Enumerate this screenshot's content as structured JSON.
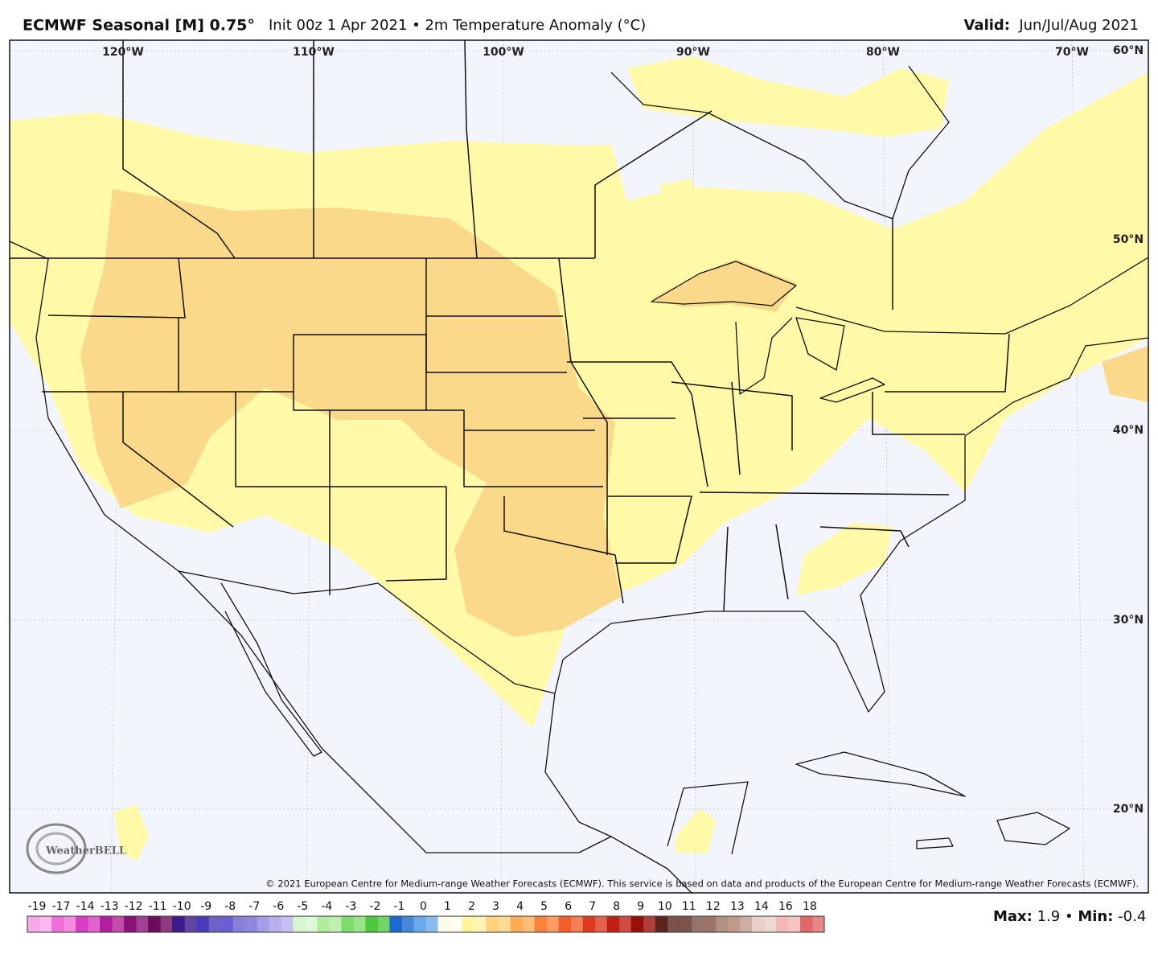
{
  "header": {
    "title": "ECMWF Seasonal [M] 0.75°",
    "subtitle": "Init 00z 1 Apr 2021 • 2m Temperature Anomaly (°C)",
    "valid_label": "Valid:",
    "valid_value": "Jun/Jul/Aug 2021"
  },
  "map": {
    "longitude_labels": [
      "120°W",
      "110°W",
      "100°W",
      "90°W",
      "80°W",
      "70°W"
    ],
    "latitude_labels": [
      "60°N",
      "50°N",
      "40°N",
      "30°N",
      "20°N"
    ],
    "copyright": "© 2021 European Centre for Medium-range Weather Forecasts (ECMWF). This service is based on data and products of the European Centre for Medium-range Weather Forecasts (ECMWF).",
    "logo": "WeatherBELL"
  },
  "legend": {
    "labels": [
      -19,
      -17,
      -14,
      -13,
      -12,
      -11,
      -10,
      -9,
      -8,
      -7,
      -6,
      -5,
      -4,
      -3,
      -2,
      -1,
      0,
      1,
      2,
      3,
      4,
      5,
      6,
      7,
      8,
      9,
      10,
      11,
      12,
      13,
      14,
      16,
      18
    ]
  },
  "stats": {
    "max_label": "Max:",
    "max_value": "1.9 •",
    "min_label": "Min:",
    "min_value": "-0.4"
  }
}
